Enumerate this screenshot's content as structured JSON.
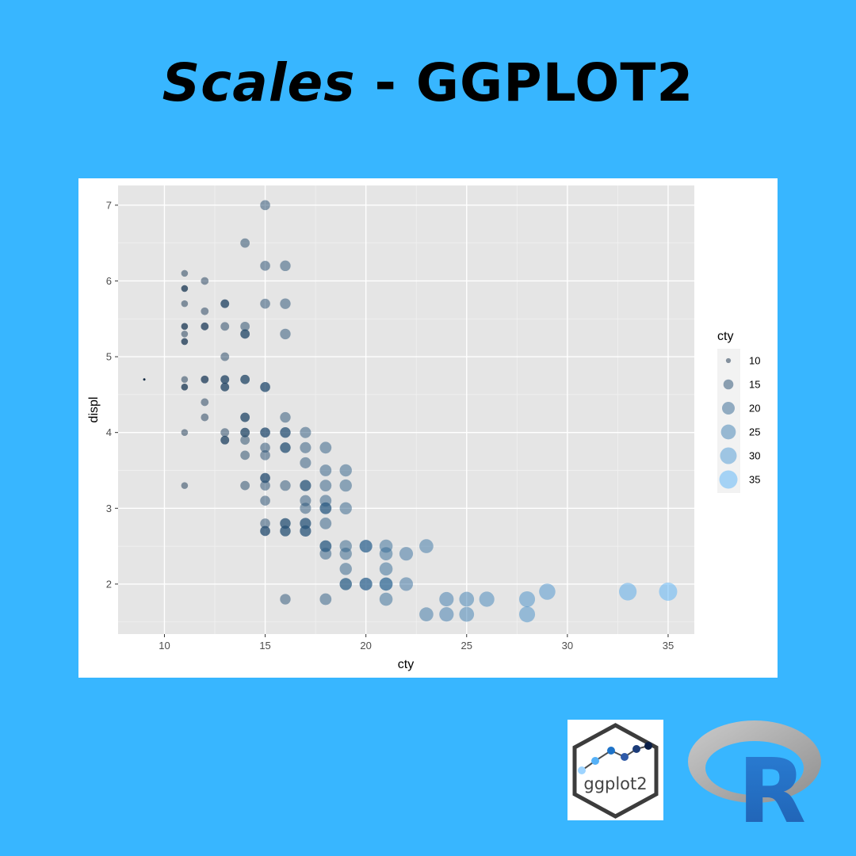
{
  "title": {
    "italic_part": "Scales",
    "rest": " - GGPLOT2"
  },
  "logos": {
    "ggplot_label": "ggplot2",
    "r_letter": "R"
  },
  "colors": {
    "background": "#38b6ff",
    "panel_bg": "#e5e5e5",
    "grid": "#ffffff",
    "low": "#132b43",
    "high": "#56b1f7"
  },
  "chart_data": {
    "type": "scatter",
    "xlabel": "cty",
    "ylabel": "displ",
    "xlim": [
      7.7,
      36.3
    ],
    "ylim": [
      1.34,
      7.26
    ],
    "x_ticks": [
      10,
      15,
      20,
      25,
      30,
      35
    ],
    "y_ticks": [
      2,
      3,
      4,
      5,
      6,
      7
    ],
    "grid": true,
    "size_and_color_scale": "cty",
    "point_alpha": 0.5,
    "legend": {
      "title": "cty",
      "position": "right",
      "values": [
        10,
        15,
        20,
        25,
        30,
        35
      ]
    },
    "points": [
      [
        9,
        4.7
      ],
      [
        11,
        6.1
      ],
      [
        11,
        5.9
      ],
      [
        11,
        5.9
      ],
      [
        11,
        5.7
      ],
      [
        11,
        5.4
      ],
      [
        11,
        5.4
      ],
      [
        11,
        5.3
      ],
      [
        11,
        5.2
      ],
      [
        11,
        5.2
      ],
      [
        11,
        4.7
      ],
      [
        11,
        4.6
      ],
      [
        11,
        4.6
      ],
      [
        11,
        4.0
      ],
      [
        11,
        3.3
      ],
      [
        12,
        6.0
      ],
      [
        12,
        5.6
      ],
      [
        12,
        5.4
      ],
      [
        12,
        5.4
      ],
      [
        12,
        4.7
      ],
      [
        12,
        4.7
      ],
      [
        12,
        4.4
      ],
      [
        12,
        4.2
      ],
      [
        13,
        5.7
      ],
      [
        13,
        5.7
      ],
      [
        13,
        5.4
      ],
      [
        13,
        5.0
      ],
      [
        13,
        4.7
      ],
      [
        13,
        4.7
      ],
      [
        13,
        4.6
      ],
      [
        13,
        4.6
      ],
      [
        13,
        4.0
      ],
      [
        13,
        3.9
      ],
      [
        13,
        3.9
      ],
      [
        14,
        6.5
      ],
      [
        14,
        5.4
      ],
      [
        14,
        5.3
      ],
      [
        14,
        5.3
      ],
      [
        14,
        4.7
      ],
      [
        14,
        4.7
      ],
      [
        14,
        4.2
      ],
      [
        14,
        4.2
      ],
      [
        14,
        4.0
      ],
      [
        14,
        4.0
      ],
      [
        14,
        3.9
      ],
      [
        14,
        3.7
      ],
      [
        14,
        3.3
      ],
      [
        15,
        7.0
      ],
      [
        15,
        6.2
      ],
      [
        15,
        5.7
      ],
      [
        15,
        4.6
      ],
      [
        15,
        4.6
      ],
      [
        15,
        4.0
      ],
      [
        15,
        4.0
      ],
      [
        15,
        3.8
      ],
      [
        15,
        3.7
      ],
      [
        15,
        3.4
      ],
      [
        15,
        3.4
      ],
      [
        15,
        3.3
      ],
      [
        15,
        3.1
      ],
      [
        15,
        2.8
      ],
      [
        15,
        2.7
      ],
      [
        15,
        2.7
      ],
      [
        16,
        6.2
      ],
      [
        16,
        5.7
      ],
      [
        16,
        5.3
      ],
      [
        16,
        4.2
      ],
      [
        16,
        4.0
      ],
      [
        16,
        4.0
      ],
      [
        16,
        3.8
      ],
      [
        16,
        3.8
      ],
      [
        16,
        3.3
      ],
      [
        16,
        2.8
      ],
      [
        16,
        2.8
      ],
      [
        16,
        2.7
      ],
      [
        16,
        2.7
      ],
      [
        16,
        1.8
      ],
      [
        17,
        4.0
      ],
      [
        17,
        3.8
      ],
      [
        17,
        3.6
      ],
      [
        17,
        3.3
      ],
      [
        17,
        3.3
      ],
      [
        17,
        3.1
      ],
      [
        17,
        3.0
      ],
      [
        17,
        2.8
      ],
      [
        17,
        2.8
      ],
      [
        17,
        2.7
      ],
      [
        17,
        2.7
      ],
      [
        18,
        3.8
      ],
      [
        18,
        3.5
      ],
      [
        18,
        3.3
      ],
      [
        18,
        3.1
      ],
      [
        18,
        3.0
      ],
      [
        18,
        3.0
      ],
      [
        18,
        2.8
      ],
      [
        18,
        2.5
      ],
      [
        18,
        2.5
      ],
      [
        18,
        2.4
      ],
      [
        18,
        1.8
      ],
      [
        19,
        3.5
      ],
      [
        19,
        3.3
      ],
      [
        19,
        3.0
      ],
      [
        19,
        2.5
      ],
      [
        19,
        2.4
      ],
      [
        19,
        2.2
      ],
      [
        19,
        2.0
      ],
      [
        19,
        2.0
      ],
      [
        20,
        2.5
      ],
      [
        20,
        2.5
      ],
      [
        20,
        2.0
      ],
      [
        20,
        2.0
      ],
      [
        21,
        2.5
      ],
      [
        21,
        2.4
      ],
      [
        21,
        2.2
      ],
      [
        21,
        2.0
      ],
      [
        21,
        2.0
      ],
      [
        21,
        1.8
      ],
      [
        22,
        2.4
      ],
      [
        22,
        2.0
      ],
      [
        23,
        2.5
      ],
      [
        23,
        1.6
      ],
      [
        24,
        1.8
      ],
      [
        24,
        1.6
      ],
      [
        25,
        1.8
      ],
      [
        25,
        1.6
      ],
      [
        26,
        1.8
      ],
      [
        28,
        1.8
      ],
      [
        28,
        1.6
      ],
      [
        29,
        1.9
      ],
      [
        33,
        1.9
      ],
      [
        35,
        1.9
      ]
    ]
  }
}
